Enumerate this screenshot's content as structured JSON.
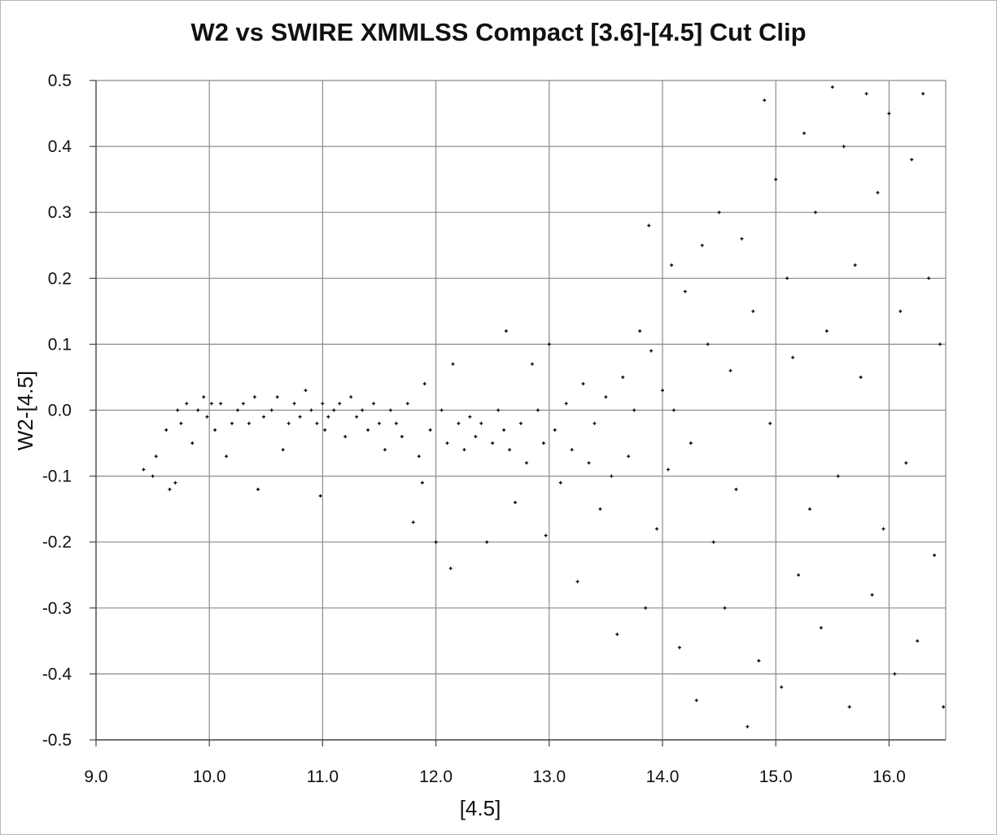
{
  "chart_data": {
    "type": "scatter",
    "title": "W2 vs SWIRE XMMLSS Compact [3.6]-[4.5] Cut Clip",
    "xlabel": "[4.5]",
    "ylabel": "W2-[4.5]",
    "xlim": [
      9.0,
      16.5
    ],
    "ylim": [
      -0.5,
      0.5
    ],
    "x_ticks": [
      9.0,
      10.0,
      11.0,
      12.0,
      13.0,
      14.0,
      15.0,
      16.0
    ],
    "y_ticks": [
      0.5,
      0.4,
      0.3,
      0.2,
      0.1,
      0.0,
      -0.1,
      -0.2,
      -0.3,
      -0.4,
      -0.5
    ],
    "x_tick_labels": [
      "9.0",
      "10.0",
      "11.0",
      "12.0",
      "13.0",
      "14.0",
      "15.0",
      "16.0"
    ],
    "y_tick_labels": [
      "0.5",
      "0.4",
      "0.3",
      "0.2",
      "0.1",
      "0.0",
      "-0.1",
      "-0.2",
      "-0.3",
      "-0.4",
      "-0.5"
    ],
    "grid": true,
    "marker_color": "#000000",
    "grid_color": "#8c8c8c",
    "series": [
      {
        "x": [
          9.42,
          9.5,
          9.53,
          9.62,
          9.65,
          9.7,
          9.72,
          9.75,
          9.8,
          9.85,
          9.9,
          9.95,
          9.98,
          10.02,
          10.05,
          10.1,
          10.15,
          10.2,
          10.25,
          10.3,
          10.35,
          10.4,
          10.43,
          10.48,
          10.55,
          10.6,
          10.65,
          10.7,
          10.75,
          10.8,
          10.85,
          10.9,
          10.95,
          10.98,
          11.0,
          11.02,
          11.05,
          11.1,
          11.15,
          11.2,
          11.25,
          11.3,
          11.35,
          11.4,
          11.45,
          11.5,
          11.55,
          11.6,
          11.65,
          11.7,
          11.75,
          11.8,
          11.85,
          11.88,
          11.9,
          11.95,
          12.0,
          12.05,
          12.1,
          12.13,
          12.15,
          12.2,
          12.25,
          12.3,
          12.35,
          12.4,
          12.45,
          12.5,
          12.55,
          12.6,
          12.62,
          12.65,
          12.7,
          12.75,
          12.8,
          12.85,
          12.9,
          12.95,
          12.97,
          13.0,
          13.05,
          13.1,
          13.15,
          13.2,
          13.25,
          13.3,
          13.35,
          13.4,
          13.45,
          13.5,
          13.55,
          13.6,
          13.65,
          13.7,
          13.75,
          13.8,
          13.85,
          13.88,
          13.9,
          13.95,
          14.0,
          14.05,
          14.08,
          14.1,
          14.15,
          14.2,
          14.25,
          14.3,
          14.35,
          14.4,
          14.45,
          14.5,
          14.55,
          14.6,
          14.65,
          14.7,
          14.75,
          14.8,
          14.85,
          14.9,
          14.95,
          15.0,
          15.05,
          15.1,
          15.15,
          15.2,
          15.25,
          15.3,
          15.35,
          15.4,
          15.45,
          15.5,
          15.55,
          15.6,
          15.65,
          15.7,
          15.75,
          15.8,
          15.85,
          15.9,
          15.95,
          16.0,
          16.05,
          16.1,
          16.15,
          16.2,
          16.25,
          16.3,
          16.35,
          16.4,
          16.45,
          16.48
        ],
        "y": [
          -0.09,
          -0.1,
          -0.07,
          -0.03,
          -0.12,
          -0.11,
          0.0,
          -0.02,
          0.01,
          -0.05,
          0.0,
          0.02,
          -0.01,
          0.01,
          -0.03,
          0.01,
          -0.07,
          -0.02,
          0.0,
          0.01,
          -0.02,
          0.02,
          -0.12,
          -0.01,
          0.0,
          0.02,
          -0.06,
          -0.02,
          0.01,
          -0.01,
          0.03,
          0.0,
          -0.02,
          -0.13,
          0.01,
          -0.03,
          -0.01,
          0.0,
          0.01,
          -0.04,
          0.02,
          -0.01,
          0.0,
          -0.03,
          0.01,
          -0.02,
          -0.06,
          0.0,
          -0.02,
          -0.04,
          0.01,
          -0.17,
          -0.07,
          -0.11,
          0.04,
          -0.03,
          -0.2,
          0.0,
          -0.05,
          -0.24,
          0.07,
          -0.02,
          -0.06,
          -0.01,
          -0.04,
          -0.02,
          -0.2,
          -0.05,
          0.0,
          -0.03,
          0.12,
          -0.06,
          -0.14,
          -0.02,
          -0.08,
          0.07,
          0.0,
          -0.05,
          -0.19,
          0.1,
          -0.03,
          -0.11,
          0.01,
          -0.06,
          -0.26,
          0.04,
          -0.08,
          -0.02,
          -0.15,
          0.02,
          -0.1,
          -0.34,
          0.05,
          -0.07,
          0.0,
          0.12,
          -0.3,
          0.28,
          0.09,
          -0.18,
          0.03,
          -0.09,
          0.22,
          0.0,
          -0.36,
          0.18,
          -0.05,
          -0.44,
          0.25,
          0.1,
          -0.2,
          0.3,
          -0.3,
          0.06,
          -0.12,
          0.26,
          -0.48,
          0.15,
          -0.38,
          0.47,
          -0.02,
          0.35,
          -0.42,
          0.2,
          0.08,
          -0.25,
          0.42,
          -0.15,
          0.3,
          -0.33,
          0.12,
          0.49,
          -0.1,
          0.4,
          -0.45,
          0.22,
          0.05,
          0.48,
          -0.28,
          0.33,
          -0.18,
          0.45,
          -0.4,
          0.15,
          -0.08,
          0.38,
          -0.35,
          0.48,
          0.2,
          -0.22,
          0.1,
          -0.45
        ]
      }
    ]
  }
}
